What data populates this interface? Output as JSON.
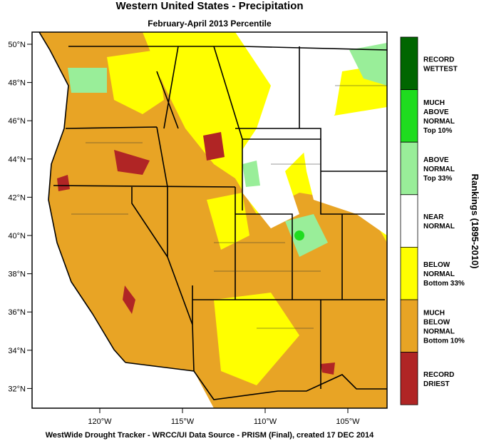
{
  "title": "Western United States - Precipitation",
  "subtitle": "February-April 2013 Percentile",
  "lat_labels": [
    "50°N",
    "48°N",
    "46°N",
    "44°N",
    "42°N",
    "40°N",
    "38°N",
    "36°N",
    "34°N",
    "32°N"
  ],
  "lon_labels": [
    "120°W",
    "115°W",
    "110°W",
    "105°W"
  ],
  "legend": {
    "title": "Rankings (1895-2010)",
    "items": [
      {
        "lines": [
          "RECORD",
          "WETTEST"
        ],
        "color": "#006600"
      },
      {
        "lines": [
          "MUCH",
          "ABOVE",
          "NORMAL",
          "Top 10%"
        ],
        "color": "#1fdc1f"
      },
      {
        "lines": [
          "ABOVE",
          "NORMAL",
          "Top 33%"
        ],
        "color": "#99ee99"
      },
      {
        "lines": [
          "NEAR",
          "NORMAL"
        ],
        "color": "#ffffff"
      },
      {
        "lines": [
          "BELOW",
          "NORMAL",
          "Bottom 33%"
        ],
        "color": "#ffff00"
      },
      {
        "lines": [
          "MUCH",
          "BELOW",
          "NORMAL",
          "Bottom 10%"
        ],
        "color": "#e8a425"
      },
      {
        "lines": [
          "RECORD",
          "DRIEST"
        ],
        "color": "#b02525"
      }
    ]
  },
  "footer": "WestWide Drought Tracker - WRCC/UI  Data Source - PRISM (Final), created 17 DEC 2014"
}
